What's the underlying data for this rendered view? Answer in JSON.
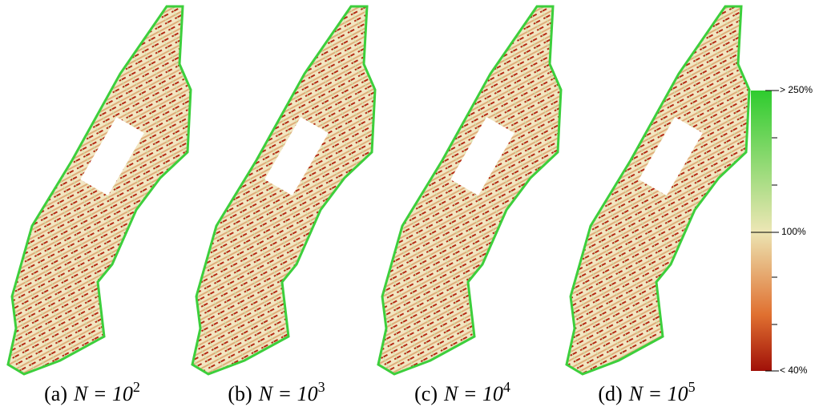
{
  "captions": [
    {
      "prefix": "(a)",
      "expression": "N = 10",
      "exponent": "2"
    },
    {
      "prefix": "(b)",
      "expression": "N = 10",
      "exponent": "3"
    },
    {
      "prefix": "(c)",
      "expression": "N = 10",
      "exponent": "4"
    },
    {
      "prefix": "(d)",
      "expression": "N = 10",
      "exponent": "5"
    }
  ],
  "colorbar": {
    "top_label": "> 250%",
    "middle_label": "100%",
    "bottom_label": "< 40%"
  }
}
